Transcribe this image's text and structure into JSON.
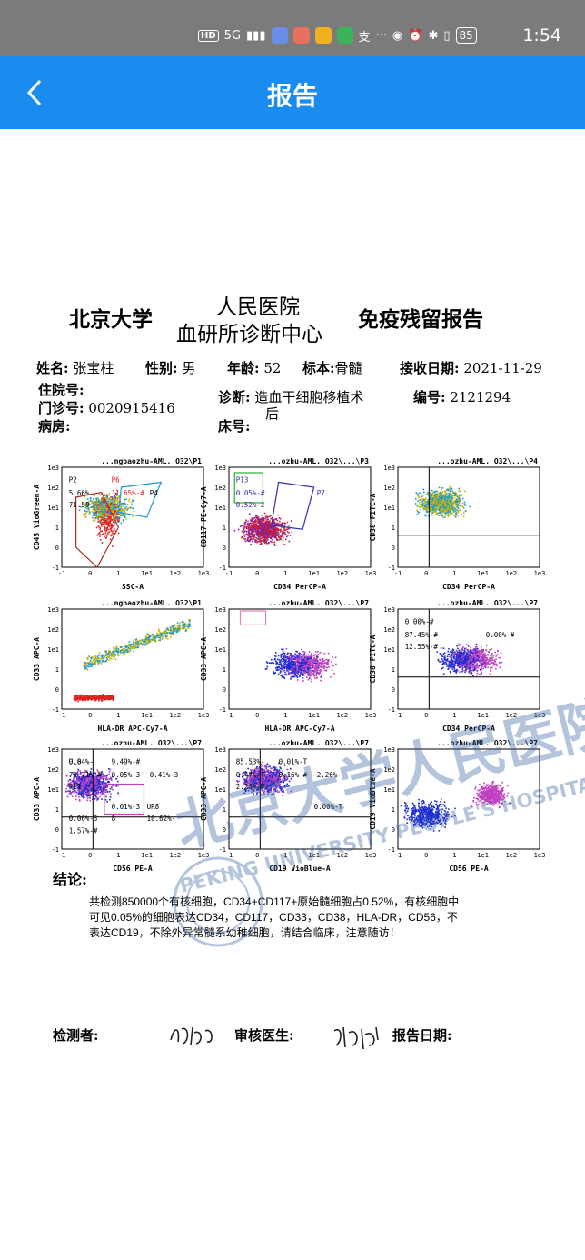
{
  "status": {
    "time": "1:54",
    "hd": "HD",
    "signal": "5G",
    "battery": "85",
    "more": "···",
    "zhifu": "支"
  },
  "appbar": {
    "title": "报告"
  },
  "report": {
    "h_left": "北京大学",
    "h_mid_top": "人民医院",
    "h_mid_bottom": "血研所诊断中心",
    "h_right": "免疫残留报告",
    "name_label": "姓名:",
    "name": "张宝柱",
    "sex_label": "性别:",
    "sex": "男",
    "age_label": "年龄:",
    "age": "52",
    "specimen_label": "标本:",
    "specimen": "骨髓",
    "date_label": "接收日期:",
    "date": "2021-11-29",
    "inpatient_label": "住院号:",
    "outpatient_label": "门诊号:",
    "outpatient": "0020915416",
    "diag_label": "诊断:",
    "diag1": "造血干细胞移植术",
    "diag2": "后",
    "no_label": "编号:",
    "no": "2121294",
    "ward_label": "病房:",
    "bed_label": "床号:",
    "concl_label": "结论:",
    "conclusion": "共检测850000个有核细胞，CD34+CD117+原始髓细胞占0.52%，有核细胞中可见0.05%的细胞表达CD34，CD117，CD33，CD38，HLA-DR，CD56，不表达CD19，不除外异常髓系幼稚细胞，请结合临床，注意随访！",
    "tester_label": "检测者:",
    "reviewer_label": "审核医生:",
    "report_date_label": "报告日期:"
  },
  "plots": [
    {
      "title": "...ngbaozhu-AML. O32\\P1",
      "x": "SSC-A",
      "y": "CD45 VioGreen-A",
      "gates": [
        "P2",
        "5.66%",
        "P4",
        "71.90",
        "P6",
        "11.65%-#"
      ]
    },
    {
      "title": "...ozhu-AML. O32\\...\\P3",
      "x": "CD34 PerCP-A",
      "y": "CD117 PE-Cy7-A",
      "gates": [
        "P13",
        "0.05%-#",
        "P7",
        "0.52%-2"
      ]
    },
    {
      "title": "...ozhu-AML. O32\\...\\P4",
      "x": "CD34 PerCP-A",
      "y": "CD38 FITC-A",
      "gates": []
    },
    {
      "title": "...ngbaozhu-AML. O32\\P1",
      "x": "HLA-DR APC-Cy7-A",
      "y": "CD33 APC-A",
      "gates": []
    },
    {
      "title": "...ozhu-AML. O32\\...\\P7",
      "x": "HLA-DR APC-Cy7-A",
      "y": "CD33 APC-A",
      "gates": []
    },
    {
      "title": "...ozhu-AML. O32\\...\\P7",
      "x": "CD34 PerCP-A",
      "y": "CD38 FITC-A",
      "gates": [
        "0.00%-#",
        "87.45%-#",
        "0.00%-#",
        "12.55%-#"
      ]
    },
    {
      "title": "...ozhu-AML. O32\\...\\P7",
      "x": "CD56 PE-A",
      "y": "CD33 APC-A",
      "gates": [
        "UL8",
        "79.71%-#",
        "0.41%-3",
        "P11",
        "9.49%-#",
        "0.05%-3",
        "UR8",
        "10.62%-",
        "0.06%-3",
        "1.57%-#",
        "0.01%-3",
        "8",
        "0.04%-"
      ]
    },
    {
      "title": "...ozhu-AML. O32\\...\\P7",
      "x": "CD19 VioBlue-A",
      "y": "CD33 APC-A",
      "gates": [
        "85.53%-",
        "0.47%-T",
        "2.26%-",
        "2.23%-#",
        "0.01%-T",
        "0.16%-#",
        "0.00%-T"
      ]
    },
    {
      "title": "...ozhu-AML. O32\\...\\P7",
      "x": "CD56 PE-A",
      "y": "CD19 VioBlue-A",
      "gates": []
    }
  ],
  "ticks": [
    "-1",
    "0",
    "1",
    "1e1",
    "1e2",
    "1e3"
  ],
  "watermark": {
    "cn": "北京大学人民医院",
    "en": "PEKING UNIVERSITY PEOPLE'S HOSPITAL"
  },
  "colors": {
    "appbar": "#1a8cef",
    "statusbar": "#7b7b7b"
  }
}
